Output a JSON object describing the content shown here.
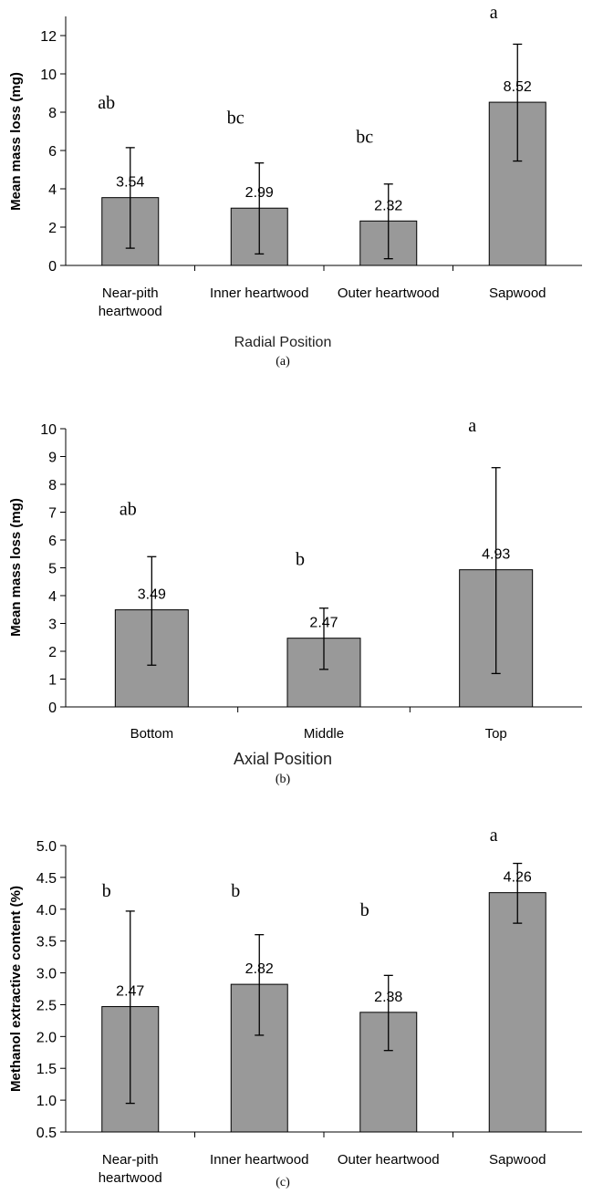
{
  "chart_data": [
    {
      "type": "bar",
      "panel_label": "(a)",
      "xlabel": "Radial Position",
      "ylabel": "Mean mass loss (mg)",
      "ylim": [
        0,
        13
      ],
      "yticks": [
        "0",
        "2",
        "4",
        "6",
        "8",
        "10",
        "12"
      ],
      "categories": [
        [
          "Near-pith",
          "heartwood"
        ],
        [
          "Inner heartwood"
        ],
        [
          "Outer heartwood"
        ],
        [
          "Sapwood"
        ]
      ],
      "values": [
        3.54,
        2.99,
        2.32,
        8.52
      ],
      "value_labels": [
        "3.54",
        "2.99",
        "2.32",
        "8.52"
      ],
      "error_low": [
        0.9,
        0.6,
        0.35,
        5.45
      ],
      "error_high": [
        6.15,
        5.35,
        4.25,
        11.55
      ],
      "letters": [
        "ab",
        "bc",
        "bc",
        "a"
      ],
      "letter_y": [
        8.2,
        7.4,
        6.4,
        12.9
      ],
      "bar_color": "#999999",
      "grid": false
    },
    {
      "type": "bar",
      "panel_label": "(b)",
      "xlabel": "Axial Position",
      "ylabel": "Mean mass loss (mg)",
      "ylim": [
        0,
        10
      ],
      "yticks": [
        "0",
        "1",
        "2",
        "3",
        "4",
        "5",
        "6",
        "7",
        "8",
        "9",
        "10"
      ],
      "categories": [
        [
          "Bottom"
        ],
        [
          "Middle"
        ],
        [
          "Top"
        ]
      ],
      "values": [
        3.49,
        2.47,
        4.93
      ],
      "value_labels": [
        "3.49",
        "2.47",
        "4.93"
      ],
      "error_low": [
        1.5,
        1.35,
        1.2
      ],
      "error_high": [
        5.4,
        3.55,
        8.6
      ],
      "letters": [
        "ab",
        "b",
        "a"
      ],
      "letter_y": [
        6.9,
        5.1,
        9.9
      ],
      "bar_color": "#999999",
      "grid": false
    },
    {
      "type": "bar",
      "panel_label": "(c)",
      "xlabel": "Radial Position",
      "ylabel": "Methanol extractive content (%)",
      "ylim": [
        0.5,
        5.0
      ],
      "yticks": [
        "0.5",
        "1.0",
        "1.5",
        "2.0",
        "2.5",
        "3.0",
        "3.5",
        "4.0",
        "4.5",
        "5.0"
      ],
      "categories": [
        [
          "Near-pith",
          "heartwood"
        ],
        [
          "Inner heartwood"
        ],
        [
          "Outer heartwood"
        ],
        [
          "Sapwood"
        ]
      ],
      "values": [
        2.47,
        2.82,
        2.38,
        4.26
      ],
      "value_labels": [
        "2.47",
        "2.82",
        "2.38",
        "4.26"
      ],
      "error_low": [
        0.95,
        2.02,
        1.78,
        3.78
      ],
      "error_high": [
        3.97,
        3.6,
        2.96,
        4.72
      ],
      "letters": [
        "b",
        "b",
        "b",
        "a"
      ],
      "letter_y": [
        4.2,
        4.2,
        3.9,
        5.07
      ],
      "bar_color": "#999999",
      "grid": false
    }
  ]
}
